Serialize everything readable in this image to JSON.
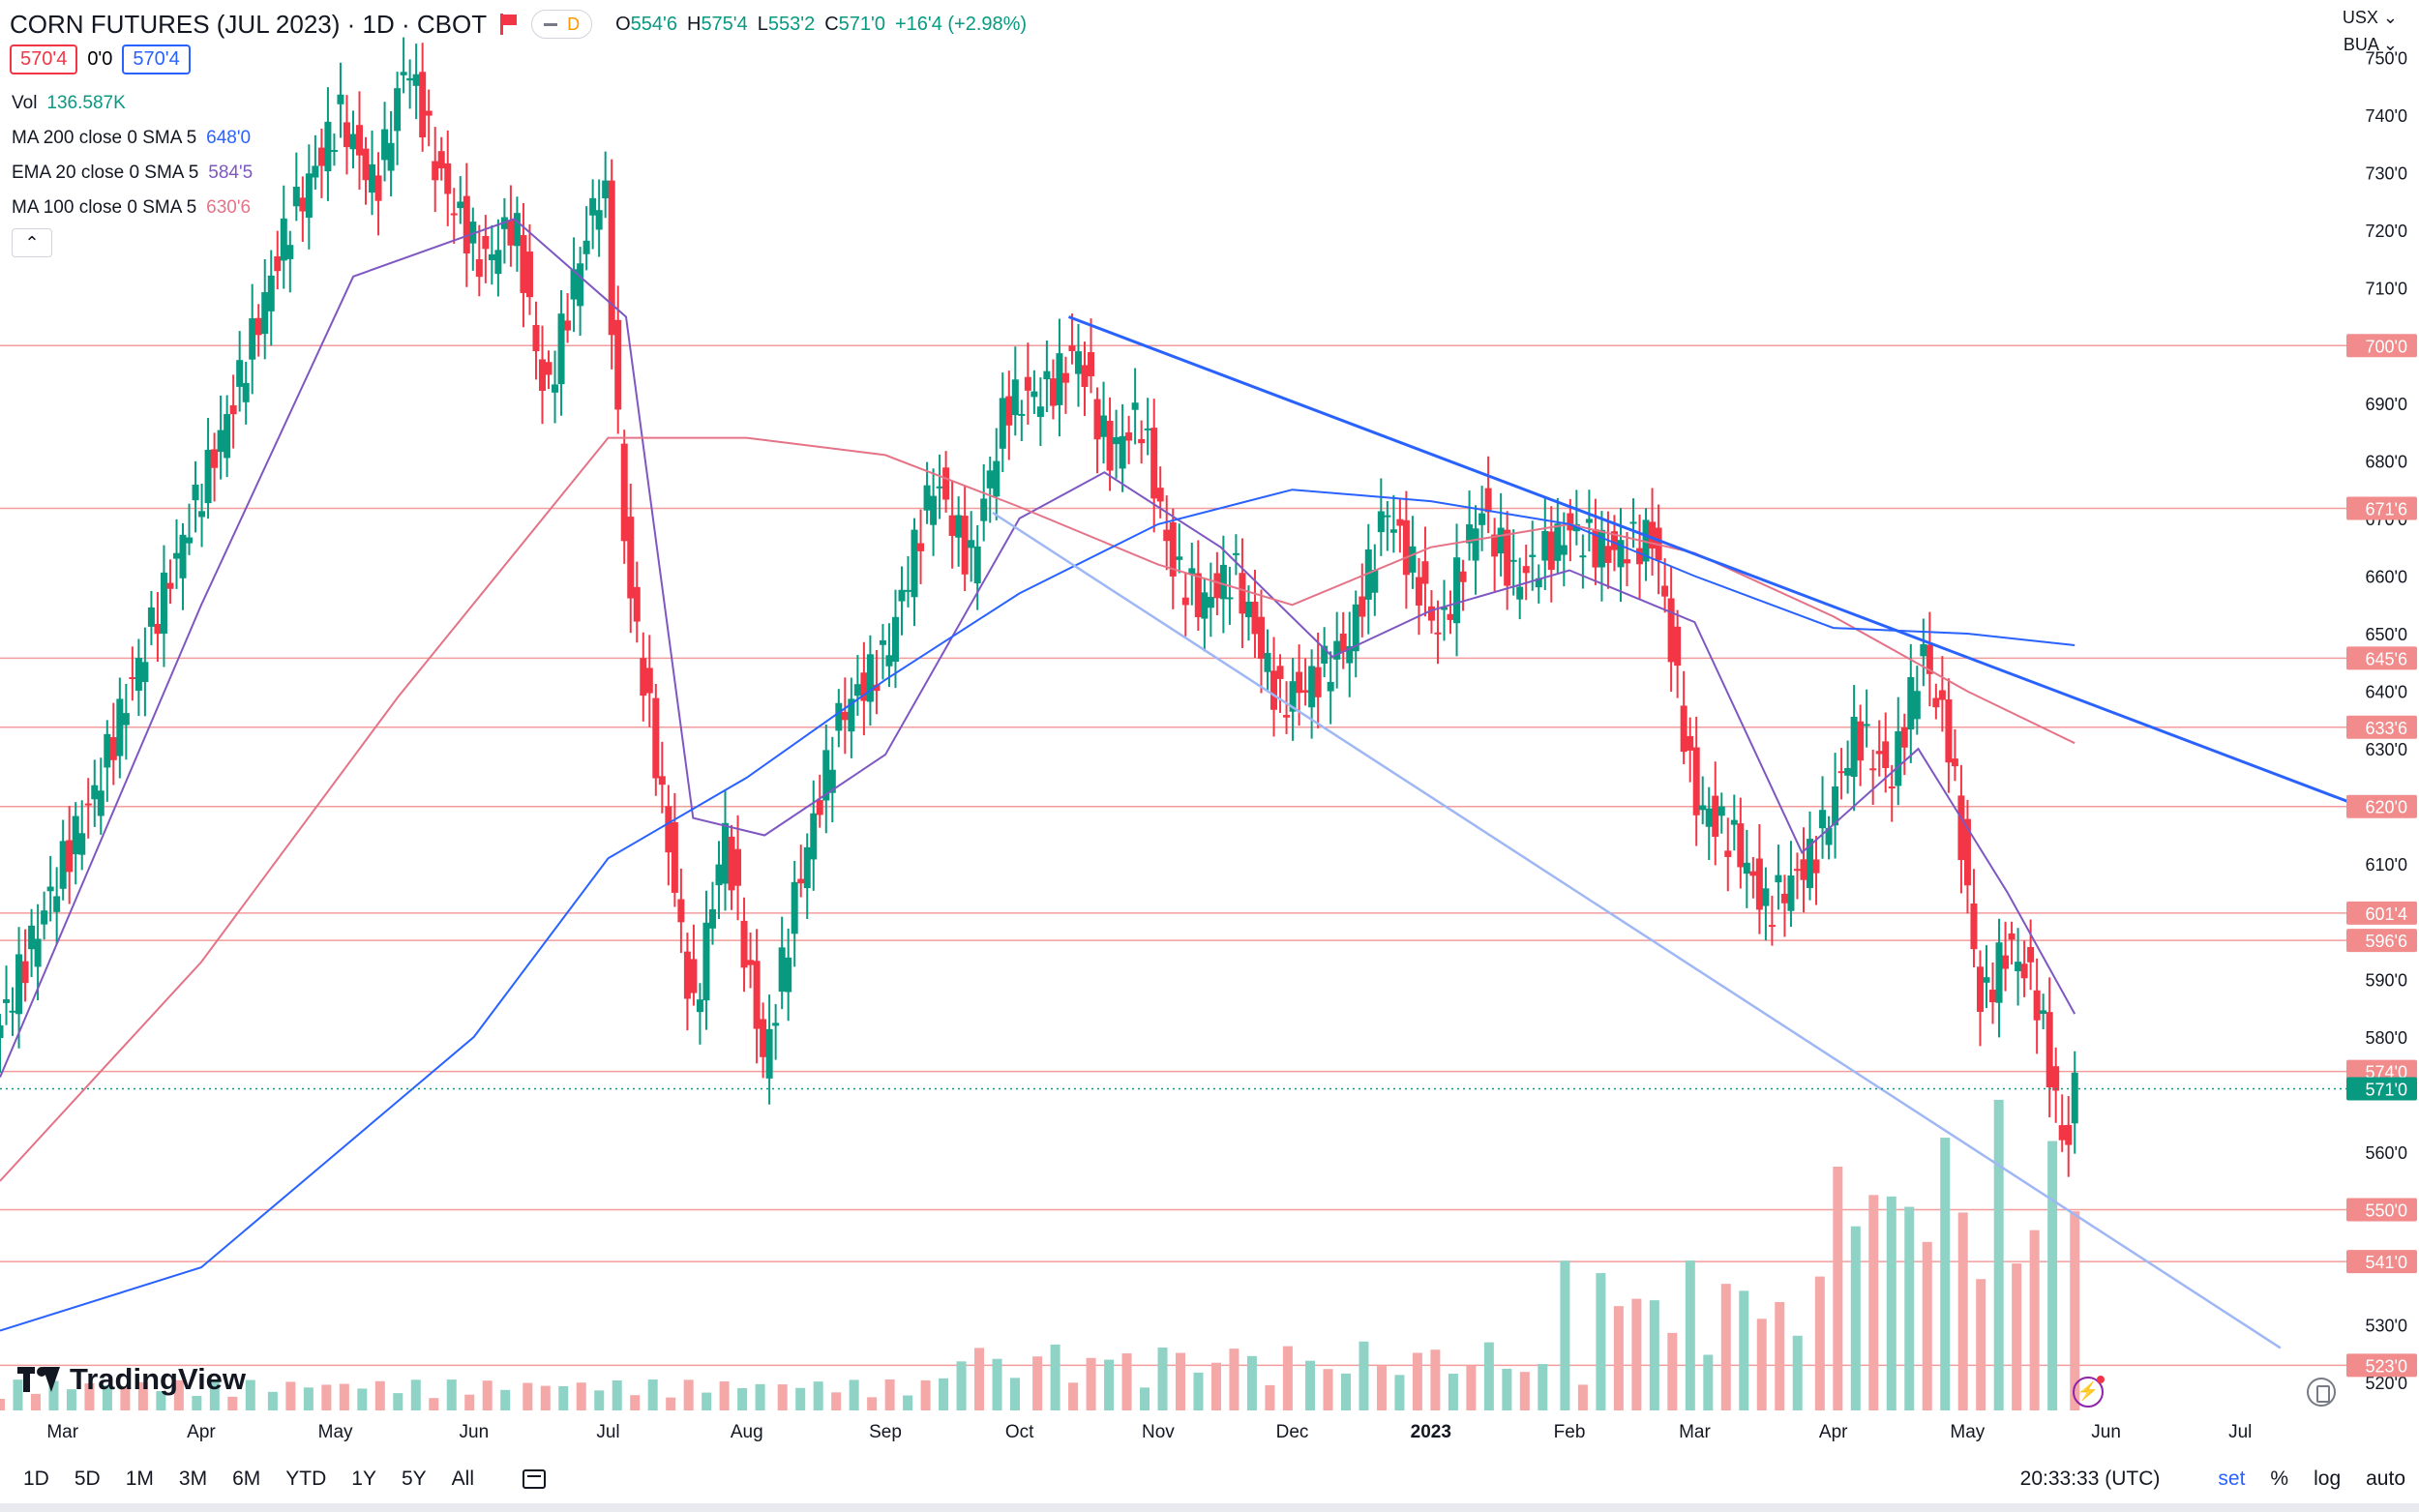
{
  "header": {
    "title": "CORN FUTURES (JUL 2023) · 1D · CBOT",
    "interval_badge": "D",
    "ohlc": [
      {
        "k": "O",
        "v": "554'6"
      },
      {
        "k": "H",
        "v": "575'4"
      },
      {
        "k": "L",
        "v": "553'2"
      },
      {
        "k": "C",
        "v": "571'0"
      },
      {
        "k": "",
        "v": "+16'4 (+2.98%)"
      }
    ],
    "bid": "570'4",
    "spread": "0'0",
    "ask": "570'4"
  },
  "indicators": [
    {
      "label": "Vol",
      "value": "136.587K",
      "color": "#089981"
    },
    {
      "label": "MA 200 close 0 SMA 5",
      "value": "648'0",
      "color": "#2962ff"
    },
    {
      "label": "EMA 20 close 0 SMA 5",
      "value": "584'5",
      "color": "#7e57c2"
    },
    {
      "label": "MA 100 close 0 SMA 5",
      "value": "630'6",
      "color": "#e57387"
    }
  ],
  "currency": "USX",
  "unit": "BUA",
  "logo_text": "TradingView",
  "ranges": [
    "1D",
    "5D",
    "1M",
    "3M",
    "6M",
    "YTD",
    "1Y",
    "5Y",
    "All"
  ],
  "clock": "20:33:33 (UTC)",
  "scale_opts": {
    "set": "set",
    "pct": "%",
    "log": "log",
    "auto": "auto"
  },
  "chart_data": {
    "type": "candlestick",
    "ylim": [
      516,
      760
    ],
    "y_ticks": [
      750,
      740,
      730,
      720,
      710,
      690,
      680,
      670,
      660,
      650,
      640,
      630,
      610,
      590,
      580,
      560,
      530,
      520
    ],
    "y_tick_labels": [
      "750'0",
      "740'0",
      "730'0",
      "720'0",
      "710'0",
      "690'0",
      "680'0",
      "670'0",
      "660'0",
      "650'0",
      "640'0",
      "630'0",
      "610'0",
      "590'0",
      "580'0",
      "560'0",
      "530'0",
      "520'0"
    ],
    "x_domain": [
      "2022-02-15",
      "2023-07-28"
    ],
    "x_ticks": [
      {
        "date": "2022-03-01",
        "label": "Mar"
      },
      {
        "date": "2022-04-01",
        "label": "Apr"
      },
      {
        "date": "2022-05-01",
        "label": "May"
      },
      {
        "date": "2022-06-01",
        "label": "Jun"
      },
      {
        "date": "2022-07-01",
        "label": "Jul"
      },
      {
        "date": "2022-08-01",
        "label": "Aug"
      },
      {
        "date": "2022-09-01",
        "label": "Sep"
      },
      {
        "date": "2022-10-01",
        "label": "Oct"
      },
      {
        "date": "2022-11-01",
        "label": "Nov"
      },
      {
        "date": "2022-12-01",
        "label": "Dec"
      },
      {
        "date": "2023-01-01",
        "label": "2023"
      },
      {
        "date": "2023-02-01",
        "label": "Feb"
      },
      {
        "date": "2023-03-01",
        "label": "Mar"
      },
      {
        "date": "2023-04-01",
        "label": "Apr"
      },
      {
        "date": "2023-05-01",
        "label": "May"
      },
      {
        "date": "2023-06-01",
        "label": "Jun"
      },
      {
        "date": "2023-07-01",
        "label": "Jul"
      }
    ],
    "close_path": [
      [
        "2022-02-15",
        582
      ],
      [
        "2022-03-01",
        610
      ],
      [
        "2022-03-08",
        622
      ],
      [
        "2022-03-15",
        638
      ],
      [
        "2022-03-25",
        660
      ],
      [
        "2022-04-08",
        690
      ],
      [
        "2022-04-20",
        720
      ],
      [
        "2022-05-02",
        740
      ],
      [
        "2022-05-10",
        727
      ],
      [
        "2022-05-17",
        750
      ],
      [
        "2022-05-24",
        730
      ],
      [
        "2022-06-03",
        714
      ],
      [
        "2022-06-10",
        722
      ],
      [
        "2022-06-17",
        690
      ],
      [
        "2022-06-24",
        713
      ],
      [
        "2022-06-30",
        730
      ],
      [
        "2022-07-05",
        662
      ],
      [
        "2022-07-12",
        627
      ],
      [
        "2022-07-20",
        583
      ],
      [
        "2022-07-27",
        616
      ],
      [
        "2022-08-05",
        575
      ],
      [
        "2022-08-12",
        605
      ],
      [
        "2022-08-22",
        636
      ],
      [
        "2022-09-01",
        646
      ],
      [
        "2022-09-12",
        677
      ],
      [
        "2022-09-20",
        662
      ],
      [
        "2022-09-28",
        690
      ],
      [
        "2022-10-07",
        692
      ],
      [
        "2022-10-14",
        699
      ],
      [
        "2022-10-21",
        681
      ],
      [
        "2022-10-28",
        688
      ],
      [
        "2022-11-04",
        662
      ],
      [
        "2022-11-11",
        655
      ],
      [
        "2022-11-18",
        661
      ],
      [
        "2022-11-28",
        638
      ],
      [
        "2022-12-06",
        642
      ],
      [
        "2022-12-14",
        649
      ],
      [
        "2022-12-22",
        672
      ],
      [
        "2023-01-03",
        650
      ],
      [
        "2023-01-12",
        672
      ],
      [
        "2023-01-20",
        659
      ],
      [
        "2023-02-01",
        668
      ],
      [
        "2023-02-10",
        664
      ],
      [
        "2023-02-20",
        667
      ],
      [
        "2023-03-01",
        621
      ],
      [
        "2023-03-10",
        614
      ],
      [
        "2023-03-17",
        602
      ],
      [
        "2023-03-28",
        612
      ],
      [
        "2023-04-06",
        633
      ],
      [
        "2023-04-14",
        625
      ],
      [
        "2023-04-21",
        647
      ],
      [
        "2023-04-27",
        631
      ],
      [
        "2023-05-04",
        585
      ],
      [
        "2023-05-10",
        596
      ],
      [
        "2023-05-16",
        589
      ],
      [
        "2023-05-23",
        559
      ],
      [
        "2023-05-25",
        571
      ]
    ],
    "volume_bars": 115,
    "last_volume_label": "136.587K",
    "moving_averages": [
      {
        "name": "EMA 20",
        "color": "#7e57c2",
        "points": [
          [
            "2022-02-15",
            573
          ],
          [
            "2022-04-01",
            655
          ],
          [
            "2022-05-05",
            712
          ],
          [
            "2022-06-10",
            722
          ],
          [
            "2022-07-05",
            705
          ],
          [
            "2022-07-20",
            618
          ],
          [
            "2022-08-05",
            615
          ],
          [
            "2022-09-01",
            629
          ],
          [
            "2022-10-01",
            670
          ],
          [
            "2022-10-20",
            678
          ],
          [
            "2022-11-15",
            665
          ],
          [
            "2022-12-10",
            646
          ],
          [
            "2023-01-01",
            654
          ],
          [
            "2023-02-01",
            661
          ],
          [
            "2023-03-01",
            652
          ],
          [
            "2023-03-25",
            612
          ],
          [
            "2023-04-20",
            630
          ],
          [
            "2023-05-10",
            605
          ],
          [
            "2023-05-25",
            584
          ]
        ]
      },
      {
        "name": "MA 100",
        "color": "#e57387",
        "points": [
          [
            "2022-02-15",
            555
          ],
          [
            "2022-04-01",
            593
          ],
          [
            "2022-05-15",
            639
          ],
          [
            "2022-07-01",
            684
          ],
          [
            "2022-08-01",
            684
          ],
          [
            "2022-09-01",
            681
          ],
          [
            "2022-10-01",
            672
          ],
          [
            "2022-11-01",
            662
          ],
          [
            "2022-12-01",
            655
          ],
          [
            "2023-01-01",
            665
          ],
          [
            "2023-02-01",
            669
          ],
          [
            "2023-03-01",
            664
          ],
          [
            "2023-04-01",
            653
          ],
          [
            "2023-05-01",
            640
          ],
          [
            "2023-05-25",
            631
          ]
        ]
      },
      {
        "name": "MA 200",
        "color": "#2962ff",
        "points": [
          [
            "2022-02-15",
            529
          ],
          [
            "2022-04-01",
            540
          ],
          [
            "2022-06-01",
            580
          ],
          [
            "2022-07-01",
            611
          ],
          [
            "2022-08-01",
            625
          ],
          [
            "2022-09-01",
            642
          ],
          [
            "2022-10-01",
            657
          ],
          [
            "2022-11-01",
            669
          ],
          [
            "2022-12-01",
            675
          ],
          [
            "2023-01-01",
            673
          ],
          [
            "2023-02-01",
            669
          ],
          [
            "2023-03-01",
            660
          ],
          [
            "2023-04-01",
            651
          ],
          [
            "2023-05-01",
            650
          ],
          [
            "2023-05-25",
            648
          ]
        ]
      }
    ],
    "trend_lines": [
      {
        "color": "#2962ff",
        "from": [
          "2022-10-12",
          705
        ],
        "to": [
          "2023-07-28",
          620
        ]
      },
      {
        "color": "#9fb7f5",
        "from": [
          "2022-09-25",
          671
        ],
        "to": [
          "2023-07-10",
          526
        ]
      }
    ],
    "horizontal_levels": [
      {
        "value": 700,
        "label": "700'0"
      },
      {
        "value": 671.75,
        "label": "671'6"
      },
      {
        "value": 645.75,
        "label": "645'6"
      },
      {
        "value": 633.75,
        "label": "633'6"
      },
      {
        "value": 620,
        "label": "620'0"
      },
      {
        "value": 601.5,
        "label": "601'4"
      },
      {
        "value": 596.75,
        "label": "596'6"
      },
      {
        "value": 574,
        "label": "574'0"
      },
      {
        "value": 550,
        "label": "550'0"
      },
      {
        "value": 541,
        "label": "541'0"
      },
      {
        "value": 523,
        "label": "523'0"
      }
    ],
    "last_price": {
      "value": 571,
      "label": "571'0",
      "color": "#089981"
    }
  }
}
